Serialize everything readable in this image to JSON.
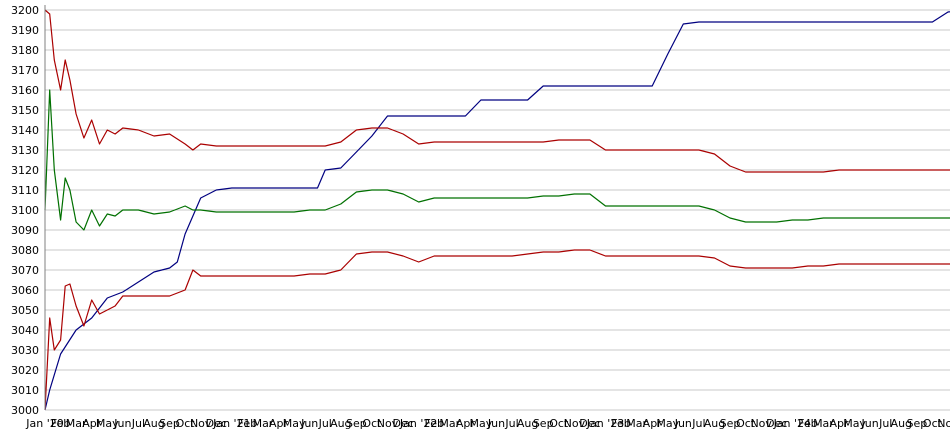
{
  "chart_data": {
    "type": "line",
    "title": "",
    "xlabel": "",
    "ylabel": "",
    "ylim": [
      3000,
      3200
    ],
    "grid": true,
    "y_ticks": [
      3000,
      3010,
      3020,
      3030,
      3040,
      3050,
      3060,
      3070,
      3080,
      3090,
      3100,
      3110,
      3120,
      3130,
      3140,
      3150,
      3160,
      3170,
      3180,
      3190,
      3200
    ],
    "x_tick_labels": [
      "Jan 20",
      "Feb",
      "Mar",
      "Apr",
      "May",
      "Jun",
      "Jul",
      "Aug",
      "Sep",
      "Oct",
      "Nov",
      "Dec",
      "Jan 21",
      "Feb",
      "Mar",
      "Apr",
      "May",
      "Jun",
      "Jul",
      "Aug",
      "Sep",
      "Oct",
      "Nov",
      "Dec",
      "Jan 22",
      "Feb",
      "Mar",
      "Apr",
      "May",
      "Jun",
      "Jul",
      "Aug",
      "Sep",
      "Oct",
      "Nov",
      "Dec",
      "Jan 23",
      "Feb",
      "Mar",
      "Apr",
      "May",
      "Jun",
      "Jul",
      "Aug",
      "Sep",
      "Oct",
      "Nov",
      "Dec",
      "Jan 24",
      "Feb",
      "Mar",
      "Apr",
      "May",
      "Jun",
      "Jul",
      "Aug",
      "Sep",
      "Oct",
      "Nov"
    ],
    "x_tick_display": [
      "Jan '20",
      "Feb",
      "Mar",
      "Apr",
      "May",
      "Jun",
      "Jul",
      "Aug",
      "Sep",
      "Oct",
      "Nov",
      "Dec",
      "Jan '21",
      "Feb",
      "Mar",
      "Apr",
      "May",
      "Jun",
      "Jul",
      "Aug",
      "Sep",
      "Oct",
      "Nov",
      "Dec",
      "Jan '22",
      "Feb",
      "Mar",
      "Apr",
      "May",
      "Jun",
      "Jul",
      "Aug",
      "Sep",
      "Oct",
      "Nov",
      "Dec",
      "Jan '23",
      "Feb",
      "Mar",
      "Apr",
      "May",
      "Jun",
      "Jul",
      "Aug",
      "Sep",
      "Oct",
      "Nov",
      "Dec",
      "Jan '24",
      "Feb",
      "Mar",
      "Apr",
      "May",
      "Jun",
      "Jul",
      "Aug",
      "Sep",
      "Oct",
      "Nov"
    ],
    "series": [
      {
        "color": "#000080",
        "x": [
          0,
          0.3,
          1,
          2,
          3,
          4,
          5,
          6,
          7,
          7.5,
          8,
          8.5,
          9,
          10,
          11,
          12,
          13,
          14,
          15,
          16,
          17,
          17.5,
          18,
          19,
          20,
          21,
          22,
          23,
          24,
          25,
          26,
          27,
          28,
          29,
          30,
          31,
          32,
          33,
          34,
          35,
          36,
          37,
          38,
          39,
          40,
          41,
          42,
          43,
          44,
          45,
          46,
          47,
          48,
          49,
          50,
          51,
          52,
          53,
          54,
          55,
          56,
          57,
          58,
          58.9
        ],
        "y": [
          3000,
          3010,
          3028,
          3040,
          3046,
          3056,
          3059,
          3064,
          3069,
          3070,
          3071,
          3074,
          3088,
          3106,
          3110,
          3111,
          3111,
          3111,
          3111,
          3111,
          3111,
          3111,
          3120,
          3121,
          3129,
          3137,
          3147,
          3147,
          3147,
          3147,
          3147,
          3147,
          3155,
          3155,
          3155,
          3155,
          3162,
          3162,
          3162,
          3162,
          3162,
          3162,
          3162,
          3162,
          3178,
          3193,
          3194,
          3194,
          3194,
          3194,
          3194,
          3194,
          3194,
          3194,
          3194,
          3194,
          3194,
          3194,
          3194,
          3194,
          3194,
          3194,
          3199,
          3200
        ]
      },
      {
        "color": "#aa0000",
        "x": [
          0,
          0.3,
          0.6,
          1,
          1.3,
          1.6,
          2,
          2.5,
          3,
          3.5,
          4,
          4.5,
          5,
          6,
          7,
          8,
          9,
          9.5,
          10,
          11,
          12,
          13,
          14,
          15,
          16,
          17,
          18,
          19,
          20,
          21,
          22,
          23,
          24,
          25,
          26,
          27,
          28,
          29,
          30,
          31,
          32,
          33,
          34,
          35,
          36,
          37,
          38,
          39,
          40,
          41,
          42,
          43,
          44,
          45,
          46,
          47,
          48,
          49,
          50,
          51,
          52,
          53,
          54,
          55,
          56,
          57,
          58,
          58.9
        ],
        "y": [
          3200,
          3198,
          3175,
          3160,
          3175,
          3165,
          3148,
          3136,
          3145,
          3133,
          3140,
          3138,
          3141,
          3140,
          3137,
          3138,
          3133,
          3130,
          3133,
          3132,
          3132,
          3132,
          3132,
          3132,
          3132,
          3132,
          3132,
          3134,
          3140,
          3141,
          3141,
          3138,
          3133,
          3134,
          3134,
          3134,
          3134,
          3134,
          3134,
          3134,
          3134,
          3135,
          3135,
          3135,
          3130,
          3130,
          3130,
          3130,
          3130,
          3130,
          3130,
          3128,
          3122,
          3119,
          3119,
          3119,
          3119,
          3119,
          3119,
          3120,
          3120,
          3120,
          3120,
          3120,
          3120,
          3120,
          3120,
          3120
        ]
      },
      {
        "color": "#007000",
        "x": [
          0,
          0.3,
          0.6,
          1,
          1.3,
          1.6,
          2,
          2.5,
          3,
          3.5,
          4,
          4.5,
          5,
          6,
          7,
          8,
          9,
          9.5,
          10,
          11,
          12,
          13,
          14,
          15,
          16,
          17,
          18,
          19,
          20,
          21,
          22,
          23,
          24,
          25,
          26,
          27,
          28,
          29,
          30,
          31,
          32,
          33,
          34,
          35,
          36,
          37,
          38,
          39,
          40,
          41,
          42,
          43,
          44,
          45,
          46,
          47,
          48,
          49,
          50,
          51,
          52,
          53,
          54,
          55,
          56,
          57,
          58,
          58.9
        ],
        "y": [
          3100,
          3160,
          3120,
          3095,
          3116,
          3110,
          3094,
          3090,
          3100,
          3092,
          3098,
          3097,
          3100,
          3100,
          3098,
          3099,
          3102,
          3100,
          3100,
          3099,
          3099,
          3099,
          3099,
          3099,
          3099,
          3100,
          3100,
          3103,
          3109,
          3110,
          3110,
          3108,
          3104,
          3106,
          3106,
          3106,
          3106,
          3106,
          3106,
          3106,
          3107,
          3107,
          3108,
          3108,
          3102,
          3102,
          3102,
          3102,
          3102,
          3102,
          3102,
          3100,
          3096,
          3094,
          3094,
          3094,
          3095,
          3095,
          3096,
          3096,
          3096,
          3096,
          3096,
          3096,
          3096,
          3096,
          3096,
          3096
        ]
      },
      {
        "color": "#aa0000",
        "x": [
          0,
          0.3,
          0.6,
          1,
          1.3,
          1.6,
          2,
          2.5,
          3,
          3.5,
          4,
          4.5,
          5,
          6,
          7,
          8,
          9,
          9.5,
          10,
          11,
          12,
          13,
          14,
          15,
          16,
          17,
          18,
          19,
          20,
          21,
          22,
          23,
          24,
          25,
          26,
          27,
          28,
          29,
          30,
          31,
          32,
          33,
          34,
          35,
          36,
          37,
          38,
          39,
          40,
          41,
          42,
          43,
          44,
          45,
          46,
          47,
          48,
          49,
          50,
          51,
          52,
          53,
          54,
          55,
          56,
          57,
          58,
          58.9
        ],
        "y": [
          3000,
          3046,
          3030,
          3035,
          3062,
          3063,
          3052,
          3042,
          3055,
          3048,
          3050,
          3052,
          3057,
          3057,
          3057,
          3057,
          3060,
          3070,
          3067,
          3067,
          3067,
          3067,
          3067,
          3067,
          3067,
          3068,
          3068,
          3070,
          3078,
          3079,
          3079,
          3077,
          3074,
          3077,
          3077,
          3077,
          3077,
          3077,
          3077,
          3078,
          3079,
          3079,
          3080,
          3080,
          3077,
          3077,
          3077,
          3077,
          3077,
          3077,
          3077,
          3076,
          3072,
          3071,
          3071,
          3071,
          3071,
          3072,
          3072,
          3073,
          3073,
          3073,
          3073,
          3073,
          3073,
          3073,
          3073,
          3073
        ]
      }
    ]
  }
}
